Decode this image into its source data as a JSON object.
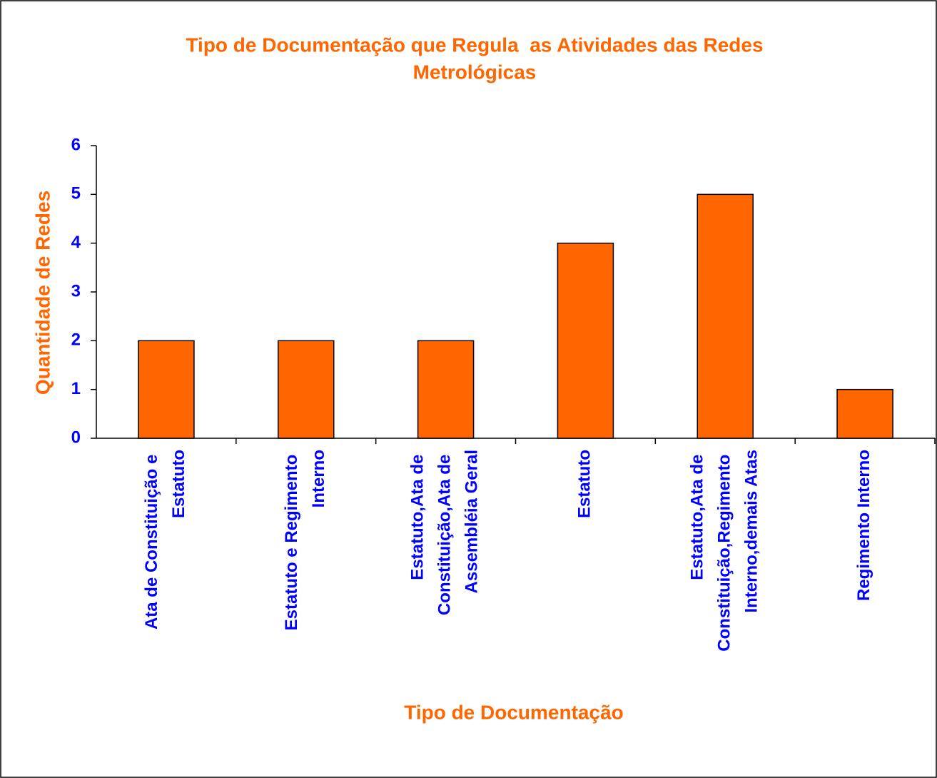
{
  "chart_data": {
    "type": "bar",
    "title": [
      "Tipo de Documentação que Regula  as Atividades das Redes",
      "Metrológicas"
    ],
    "x_label": "Tipo de Documentação",
    "y_label": "Quantidade de Redes",
    "categories": [
      "Ata de Constituição e Estatuto",
      "Estatuto e Regimento Interno",
      "Estatuto,Ata de Constituição,Ata de Assembléia Geral",
      "Estatuto",
      "Estatuto,Ata de Constituição,Regimento Interno,demais Atas",
      "Regimento Interno"
    ],
    "values": [
      2,
      2,
      2,
      4,
      5,
      1
    ],
    "color": "#ff6600",
    "ylim": [
      0,
      6
    ],
    "yticks": [
      0,
      1,
      2,
      3,
      4,
      5,
      6
    ],
    "grid": false
  }
}
